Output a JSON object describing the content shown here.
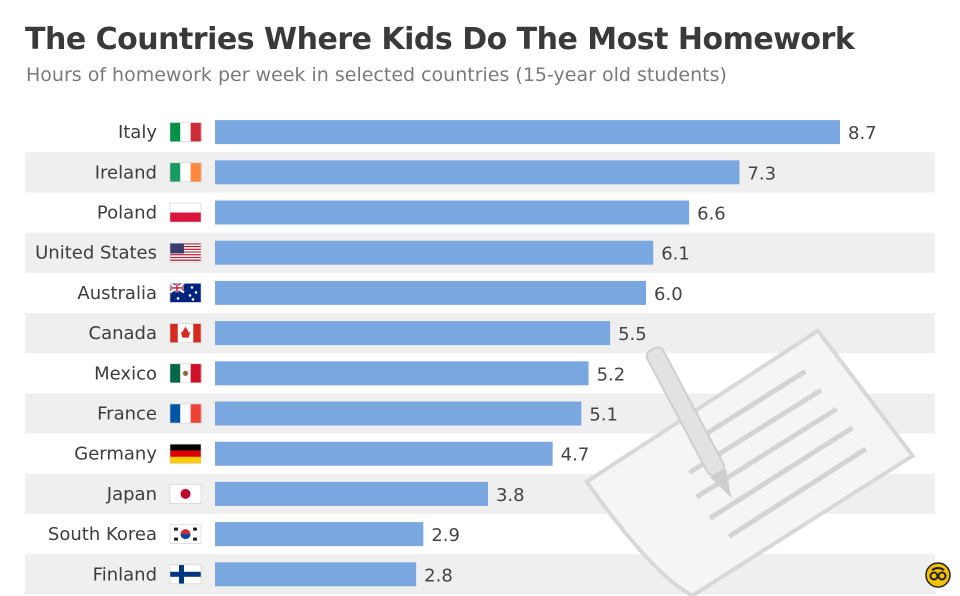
{
  "header": {
    "title": "The Countries Where Kids Do The Most Homework",
    "subtitle": "Hours of homework per week in selected countries (15-year old students)"
  },
  "colors": {
    "bar": "#7ba7e0",
    "band": "#efefef",
    "illustration": "#e6e6e6"
  },
  "chart_data": {
    "type": "bar",
    "orientation": "horizontal",
    "title": "The Countries Where Kids Do The Most Homework",
    "subtitle": "Hours of homework per week in selected countries (15-year old students)",
    "categories": [
      "Italy",
      "Ireland",
      "Poland",
      "United States",
      "Australia",
      "Canada",
      "Mexico",
      "France",
      "Germany",
      "Japan",
      "South Korea",
      "Finland"
    ],
    "values": [
      8.7,
      7.3,
      6.6,
      6.1,
      6.0,
      5.5,
      5.2,
      5.1,
      4.7,
      3.8,
      2.9,
      2.8
    ],
    "value_labels": [
      "8.7",
      "7.3",
      "6.6",
      "6.1",
      "6.0",
      "5.5",
      "5.2",
      "5.1",
      "4.7",
      "3.8",
      "2.9",
      "2.8"
    ],
    "flags": [
      "italy",
      "ireland",
      "poland",
      "united-states",
      "australia",
      "canada",
      "mexico",
      "france",
      "germany",
      "japan",
      "south-korea",
      "finland"
    ],
    "xlim": [
      0,
      8.7
    ],
    "grid": false,
    "legend": "none"
  }
}
